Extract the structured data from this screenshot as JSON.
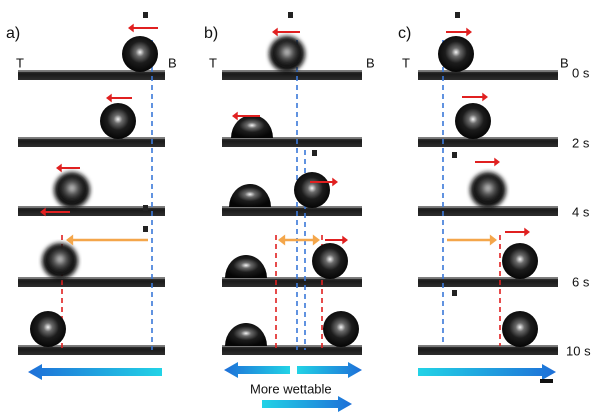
{
  "panels": [
    {
      "label": "a)",
      "left_end": "T",
      "right_end": "B"
    },
    {
      "label": "b)",
      "left_end": "T",
      "right_end": "B"
    },
    {
      "label": "c)",
      "left_end": "T",
      "right_end": "B"
    }
  ],
  "time_labels": [
    "0 s",
    "2 s",
    "4 s",
    "6 s",
    "10 s"
  ],
  "gradient_label": "More wettable"
}
